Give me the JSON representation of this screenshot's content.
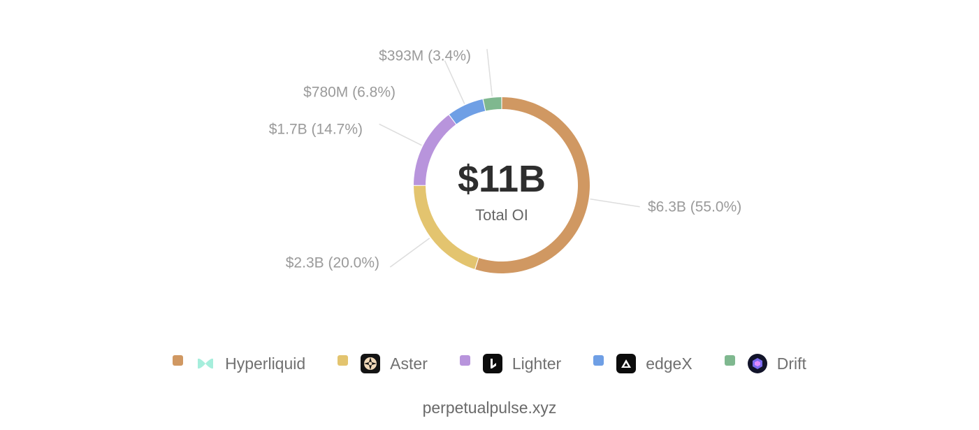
{
  "chart_data": {
    "type": "pie",
    "variant": "donut",
    "center": {
      "value": "$11B",
      "label": "Total OI"
    },
    "slices": [
      {
        "name": "Hyperliquid",
        "value": 6.3,
        "percent": 55.0,
        "label": "$6.3B (55.0%)",
        "color": "#d09862",
        "icon": "hyperliquid-logo-icon"
      },
      {
        "name": "Aster",
        "value": 2.3,
        "percent": 20.0,
        "label": "$2.3B (20.0%)",
        "color": "#e3c46f",
        "icon": "aster-logo-icon"
      },
      {
        "name": "Lighter",
        "value": 1.7,
        "percent": 14.7,
        "label": "$1.7B (14.7%)",
        "color": "#b894dc",
        "icon": "lighter-logo-icon"
      },
      {
        "name": "edgeX",
        "value": 0.78,
        "percent": 6.8,
        "label": "$780M (6.8%)",
        "color": "#6f9fe5",
        "icon": "edgex-logo-icon"
      },
      {
        "name": "Drift",
        "value": 0.393,
        "percent": 3.4,
        "label": "$393M (3.4%)",
        "color": "#7fb88f",
        "icon": "drift-logo-icon"
      }
    ],
    "legend_position": "bottom"
  },
  "footer": {
    "text": "perpetualpulse.xyz"
  }
}
